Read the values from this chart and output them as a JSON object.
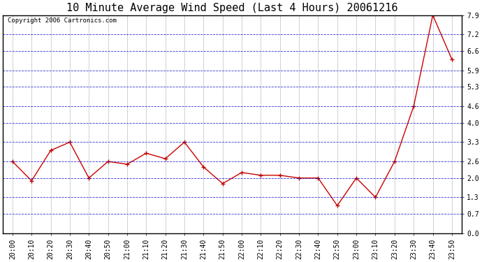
{
  "title": "10 Minute Average Wind Speed (Last 4 Hours) 20061216",
  "copyright": "Copyright 2006 Cartronics.com",
  "x_labels": [
    "20:00",
    "20:10",
    "20:20",
    "20:30",
    "20:40",
    "20:50",
    "21:00",
    "21:10",
    "21:20",
    "21:30",
    "21:40",
    "21:50",
    "22:00",
    "22:10",
    "22:20",
    "22:30",
    "22:40",
    "22:50",
    "23:00",
    "23:10",
    "23:20",
    "23:30",
    "23:40",
    "23:50"
  ],
  "y_values": [
    2.6,
    1.9,
    3.0,
    3.3,
    2.0,
    2.6,
    2.5,
    2.9,
    2.7,
    3.3,
    2.4,
    1.8,
    2.2,
    2.1,
    2.1,
    2.0,
    2.0,
    1.0,
    2.0,
    1.3,
    2.6,
    4.6,
    7.9,
    6.3
  ],
  "line_color": "#cc0000",
  "marker_color": "#cc0000",
  "bg_color": "#ffffff",
  "grid_color_h": "#0000cc",
  "grid_color_v": "#404040",
  "border_color": "#000000",
  "y_tick_labels": [
    "0.0",
    "0.7",
    "1.3",
    "2.0",
    "2.6",
    "3.3",
    "4.0",
    "4.6",
    "5.3",
    "5.9",
    "6.6",
    "7.2",
    "7.9"
  ],
  "y_tick_values": [
    0.0,
    0.7,
    1.3,
    2.0,
    2.6,
    3.3,
    4.0,
    4.6,
    5.3,
    5.9,
    6.6,
    7.2,
    7.9
  ],
  "ylim_min": 0.0,
  "ylim_max": 7.9,
  "title_fontsize": 11,
  "copyright_fontsize": 6.5,
  "tick_fontsize": 7
}
